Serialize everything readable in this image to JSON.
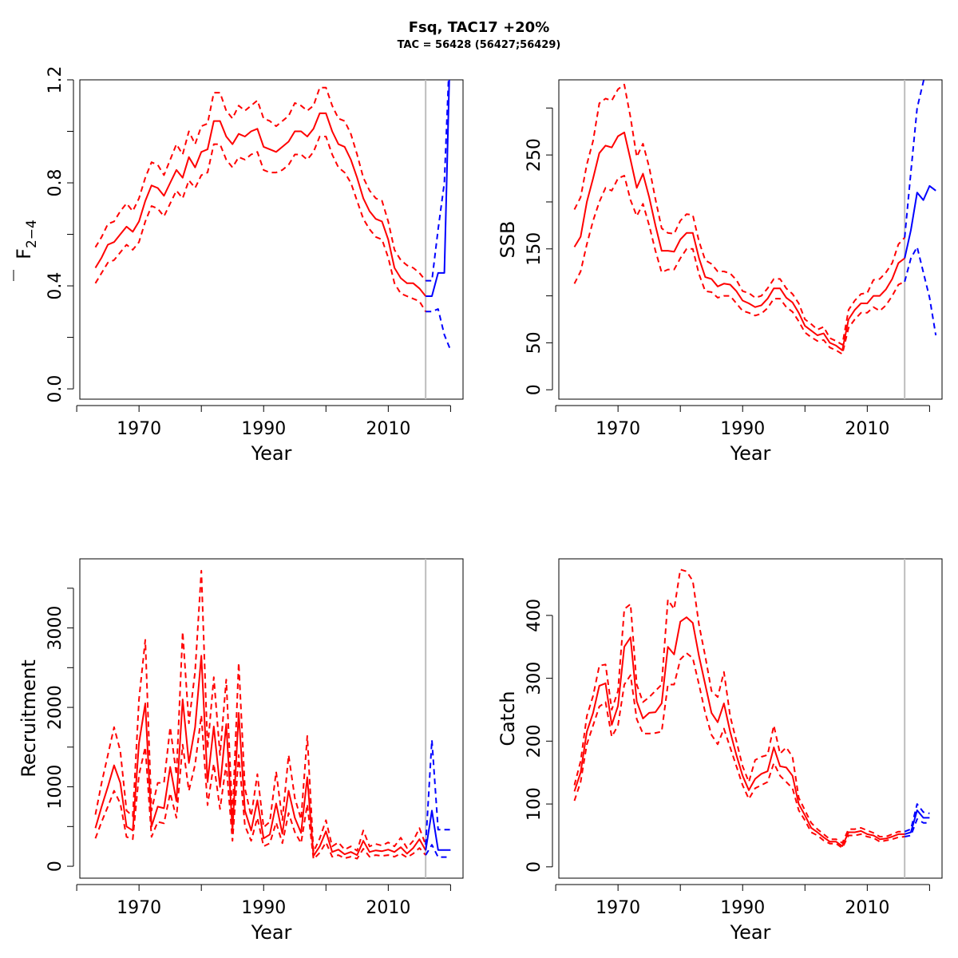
{
  "title": "Fsq, TAC17 +20%",
  "subtitle": "TAC = 56428 (56427;56429)",
  "colors": {
    "historic": "#ff0000",
    "projection": "#0000ff",
    "divider": "#bebebe",
    "axis": "#000000"
  },
  "chart_data": [
    {
      "type": "line",
      "id": "f",
      "ylabel_main": "F",
      "ylabel_sub": "2−4",
      "xlabel": "Year",
      "xlim": [
        1960.5,
        2022
      ],
      "ylim": [
        -0.04,
        1.2
      ],
      "xticks": [
        1970,
        1990,
        2010
      ],
      "xticks_minor": [
        1960,
        1980,
        2000,
        2020
      ],
      "yticks": [
        0.0,
        0.4,
        0.8,
        1.2
      ],
      "yticks_labels": [
        "0.0",
        "0.4",
        "0.8",
        "1.2"
      ],
      "yticks_minor": [
        0.2,
        0.6,
        1.0
      ],
      "divider_x": 2016,
      "historic": {
        "x": [
          1963,
          1964,
          1965,
          1966,
          1967,
          1968,
          1969,
          1970,
          1971,
          1972,
          1973,
          1974,
          1975,
          1976,
          1977,
          1978,
          1979,
          1980,
          1981,
          1982,
          1983,
          1984,
          1985,
          1986,
          1987,
          1988,
          1989,
          1990,
          1991,
          1992,
          1993,
          1994,
          1995,
          1996,
          1997,
          1998,
          1999,
          2000,
          2001,
          2002,
          2003,
          2004,
          2005,
          2006,
          2007,
          2008,
          2009,
          2010,
          2011,
          2012,
          2013,
          2014,
          2015,
          2016
        ],
        "mid": [
          0.47,
          0.51,
          0.56,
          0.57,
          0.6,
          0.63,
          0.61,
          0.65,
          0.73,
          0.79,
          0.78,
          0.75,
          0.8,
          0.85,
          0.82,
          0.9,
          0.86,
          0.92,
          0.93,
          1.04,
          1.04,
          0.98,
          0.95,
          0.99,
          0.98,
          1.0,
          1.01,
          0.94,
          0.93,
          0.92,
          0.94,
          0.96,
          1.0,
          1.0,
          0.98,
          1.01,
          1.07,
          1.07,
          1.0,
          0.95,
          0.94,
          0.89,
          0.82,
          0.74,
          0.69,
          0.66,
          0.65,
          0.58,
          0.47,
          0.43,
          0.41,
          0.41,
          0.39,
          0.36
        ],
        "upper": [
          0.55,
          0.59,
          0.64,
          0.65,
          0.69,
          0.72,
          0.69,
          0.74,
          0.82,
          0.88,
          0.87,
          0.83,
          0.89,
          0.95,
          0.91,
          1.0,
          0.95,
          1.02,
          1.03,
          1.15,
          1.15,
          1.08,
          1.05,
          1.1,
          1.08,
          1.1,
          1.12,
          1.05,
          1.04,
          1.02,
          1.04,
          1.06,
          1.11,
          1.1,
          1.08,
          1.1,
          1.17,
          1.17,
          1.1,
          1.05,
          1.04,
          0.99,
          0.91,
          0.82,
          0.77,
          0.74,
          0.73,
          0.65,
          0.54,
          0.5,
          0.48,
          0.47,
          0.45,
          0.42
        ],
        "lower": [
          0.41,
          0.45,
          0.49,
          0.5,
          0.53,
          0.56,
          0.54,
          0.57,
          0.65,
          0.71,
          0.7,
          0.67,
          0.72,
          0.77,
          0.74,
          0.81,
          0.78,
          0.83,
          0.84,
          0.95,
          0.95,
          0.89,
          0.86,
          0.9,
          0.89,
          0.91,
          0.92,
          0.85,
          0.84,
          0.84,
          0.85,
          0.87,
          0.91,
          0.91,
          0.89,
          0.92,
          0.98,
          0.98,
          0.91,
          0.86,
          0.84,
          0.8,
          0.73,
          0.66,
          0.62,
          0.59,
          0.58,
          0.51,
          0.41,
          0.37,
          0.36,
          0.35,
          0.34,
          0.3
        ]
      },
      "projection": {
        "x": [
          2016,
          2017,
          2018,
          2019,
          2020
        ],
        "mid": [
          0.36,
          0.36,
          0.45,
          0.45,
          1.4
        ],
        "upper": [
          0.42,
          0.42,
          0.62,
          0.8,
          1.4
        ],
        "lower": [
          0.3,
          0.3,
          0.31,
          0.21,
          0.15
        ]
      }
    },
    {
      "type": "line",
      "id": "ssb",
      "ylabel_main": "SSB",
      "xlabel": "Year",
      "xlim": [
        1960.5,
        2022
      ],
      "ylim": [
        -10,
        330
      ],
      "xticks": [
        1970,
        1990,
        2010
      ],
      "xticks_minor": [
        1960,
        1980,
        2000,
        2020
      ],
      "yticks": [
        0,
        50,
        150,
        250
      ],
      "yticks_labels": [
        "0",
        "50",
        "150",
        "250"
      ],
      "yticks_minor": [
        100,
        200,
        300
      ],
      "divider_x": 2016,
      "historic": {
        "x": [
          1963,
          1964,
          1965,
          1966,
          1967,
          1968,
          1969,
          1970,
          1971,
          1972,
          1973,
          1974,
          1975,
          1976,
          1977,
          1978,
          1979,
          1980,
          1981,
          1982,
          1983,
          1984,
          1985,
          1986,
          1987,
          1988,
          1989,
          1990,
          1991,
          1992,
          1993,
          1994,
          1995,
          1996,
          1997,
          1998,
          1999,
          2000,
          2001,
          2002,
          2003,
          2004,
          2005,
          2006,
          2007,
          2008,
          2009,
          2010,
          2011,
          2012,
          2013,
          2014,
          2015,
          2016
        ],
        "mid": [
          152,
          163,
          200,
          225,
          252,
          260,
          258,
          270,
          274,
          245,
          215,
          230,
          205,
          175,
          148,
          148,
          147,
          160,
          167,
          167,
          140,
          120,
          118,
          110,
          113,
          112,
          105,
          95,
          92,
          88,
          90,
          97,
          108,
          108,
          98,
          93,
          82,
          68,
          63,
          58,
          60,
          50,
          47,
          42,
          75,
          85,
          92,
          92,
          100,
          100,
          107,
          118,
          135,
          140
        ],
        "upper": [
          192,
          205,
          240,
          265,
          305,
          310,
          308,
          320,
          325,
          290,
          248,
          262,
          237,
          203,
          172,
          167,
          166,
          180,
          187,
          186,
          158,
          138,
          134,
          126,
          126,
          124,
          117,
          105,
          103,
          98,
          100,
          108,
          118,
          118,
          108,
          102,
          92,
          75,
          70,
          64,
          67,
          55,
          52,
          48,
          85,
          95,
          102,
          103,
          117,
          118,
          125,
          135,
          155,
          162
        ],
        "lower": [
          113,
          126,
          155,
          180,
          200,
          215,
          212,
          225,
          228,
          202,
          185,
          198,
          175,
          148,
          125,
          128,
          128,
          140,
          150,
          150,
          123,
          105,
          104,
          98,
          100,
          100,
          92,
          84,
          82,
          79,
          81,
          87,
          97,
          97,
          88,
          83,
          73,
          61,
          56,
          52,
          53,
          45,
          42,
          38,
          66,
          75,
          82,
          82,
          88,
          84,
          90,
          100,
          112,
          115
        ]
      },
      "projection": {
        "x": [
          2016,
          2017,
          2018,
          2019,
          2020,
          2021
        ],
        "mid": [
          140,
          170,
          210,
          202,
          217,
          212
        ],
        "upper": [
          162,
          232,
          300,
          328,
          360,
          380
        ],
        "lower": [
          115,
          140,
          152,
          125,
          98,
          58
        ]
      }
    },
    {
      "type": "line",
      "id": "recruitment",
      "ylabel_main": "Recruitment",
      "xlabel": "Year",
      "xlim": [
        1960.5,
        2022
      ],
      "ylim": [
        -150,
        3870
      ],
      "xticks": [
        1970,
        1990,
        2010
      ],
      "xticks_minor": [
        1960,
        1980,
        2000,
        2020
      ],
      "yticks": [
        0,
        1000,
        2000,
        3000
      ],
      "yticks_labels": [
        "0",
        "1000",
        "2000",
        "3000"
      ],
      "yticks_minor": [
        500,
        1500,
        2500,
        3500
      ],
      "divider_x": 2016,
      "historic": {
        "x": [
          1963,
          1964,
          1965,
          1966,
          1967,
          1968,
          1969,
          1970,
          1971,
          1972,
          1973,
          1974,
          1975,
          1976,
          1977,
          1978,
          1979,
          1980,
          1981,
          1982,
          1983,
          1984,
          1985,
          1986,
          1987,
          1988,
          1989,
          1990,
          1991,
          1992,
          1993,
          1994,
          1995,
          1996,
          1997,
          1998,
          1999,
          2000,
          2001,
          2002,
          2003,
          2004,
          2005,
          2006,
          2007,
          2008,
          2009,
          2010,
          2011,
          2012,
          2013,
          2014,
          2015,
          2016
        ],
        "mid": [
          480,
          750,
          1000,
          1270,
          1050,
          500,
          450,
          1550,
          2050,
          500,
          750,
          730,
          1250,
          820,
          2100,
          1300,
          1750,
          2650,
          1060,
          1760,
          1000,
          1790,
          450,
          1930,
          700,
          450,
          830,
          350,
          400,
          790,
          410,
          950,
          610,
          420,
          1120,
          130,
          250,
          440,
          180,
          210,
          150,
          180,
          140,
          320,
          180,
          200,
          190,
          210,
          180,
          240,
          160,
          230,
          340,
          200
        ],
        "upper": [
          650,
          1050,
          1400,
          1750,
          1450,
          700,
          630,
          2100,
          2850,
          700,
          1050,
          1050,
          1750,
          1150,
          2950,
          1800,
          2450,
          3720,
          1480,
          2380,
          1400,
          2350,
          630,
          2560,
          980,
          630,
          1160,
          490,
          560,
          1190,
          580,
          1400,
          860,
          590,
          1640,
          180,
          350,
          580,
          250,
          300,
          210,
          250,
          195,
          450,
          250,
          280,
          260,
          300,
          250,
          360,
          230,
          320,
          480,
          270
        ],
        "lower": [
          350,
          560,
          750,
          950,
          790,
          370,
          340,
          1150,
          1500,
          370,
          560,
          540,
          920,
          610,
          1530,
          950,
          1280,
          1900,
          770,
          1290,
          720,
          1290,
          320,
          1400,
          510,
          320,
          610,
          250,
          290,
          550,
          290,
          670,
          430,
          290,
          780,
          90,
          170,
          300,
          120,
          140,
          100,
          120,
          95,
          220,
          120,
          140,
          130,
          140,
          120,
          160,
          110,
          160,
          230,
          140
        ]
      },
      "projection": {
        "x": [
          2016,
          2017,
          2018,
          2019,
          2020
        ],
        "mid": [
          200,
          700,
          205,
          205,
          205
        ],
        "upper": [
          270,
          1590,
          460,
          460,
          460
        ],
        "lower": [
          140,
          270,
          115,
          115,
          115
        ]
      }
    },
    {
      "type": "line",
      "id": "catch",
      "ylabel_main": "Catch",
      "xlabel": "Year",
      "xlim": [
        1960.5,
        2022
      ],
      "ylim": [
        -18,
        490
      ],
      "xticks": [
        1970,
        1990,
        2010
      ],
      "xticks_minor": [
        1960,
        1980,
        2000,
        2020
      ],
      "yticks": [
        0,
        100,
        200,
        300,
        400
      ],
      "yticks_labels": [
        "0",
        "100",
        "200",
        "300",
        "400"
      ],
      "yticks_minor": [],
      "divider_x": 2016,
      "historic": {
        "x": [
          1963,
          1964,
          1965,
          1966,
          1967,
          1968,
          1969,
          1970,
          1971,
          1972,
          1973,
          1974,
          1975,
          1976,
          1977,
          1978,
          1979,
          1980,
          1981,
          1982,
          1983,
          1984,
          1985,
          1986,
          1987,
          1988,
          1989,
          1990,
          1991,
          1992,
          1993,
          1994,
          1995,
          1996,
          1997,
          1998,
          1999,
          2000,
          2001,
          2002,
          2003,
          2004,
          2005,
          2006,
          2007,
          2008,
          2009,
          2010,
          2011,
          2012,
          2013,
          2014,
          2015,
          2016
        ],
        "mid": [
          120,
          150,
          215,
          245,
          288,
          292,
          226,
          256,
          350,
          365,
          263,
          236,
          245,
          246,
          260,
          350,
          338,
          390,
          397,
          388,
          335,
          290,
          245,
          230,
          260,
          215,
          178,
          145,
          122,
          140,
          148,
          152,
          190,
          160,
          158,
          145,
          100,
          82,
          62,
          55,
          47,
          40,
          40,
          33,
          55,
          55,
          57,
          52,
          50,
          44,
          45,
          48,
          52,
          52
        ],
        "upper": [
          130,
          168,
          240,
          272,
          320,
          322,
          250,
          280,
          410,
          418,
          290,
          262,
          270,
          280,
          290,
          425,
          410,
          473,
          470,
          455,
          385,
          335,
          280,
          270,
          310,
          240,
          200,
          160,
          135,
          170,
          175,
          178,
          225,
          180,
          190,
          175,
          110,
          90,
          70,
          60,
          52,
          44,
          44,
          38,
          60,
          60,
          62,
          58,
          54,
          48,
          48,
          52,
          56,
          56
        ],
        "lower": [
          105,
          135,
          195,
          225,
          255,
          262,
          207,
          225,
          290,
          305,
          235,
          212,
          212,
          213,
          215,
          290,
          290,
          330,
          340,
          332,
          290,
          245,
          210,
          195,
          220,
          190,
          160,
          130,
          108,
          125,
          130,
          135,
          165,
          145,
          135,
          125,
          90,
          74,
          55,
          50,
          42,
          37,
          37,
          30,
          50,
          50,
          52,
          48,
          46,
          40,
          42,
          44,
          47,
          48
        ]
      },
      "projection": {
        "x": [
          2016,
          2017,
          2018,
          2019,
          2020
        ],
        "mid": [
          52,
          55,
          90,
          78,
          78
        ],
        "upper": [
          56,
          60,
          100,
          87,
          85
        ],
        "lower": [
          48,
          50,
          76,
          70,
          70
        ]
      }
    }
  ]
}
